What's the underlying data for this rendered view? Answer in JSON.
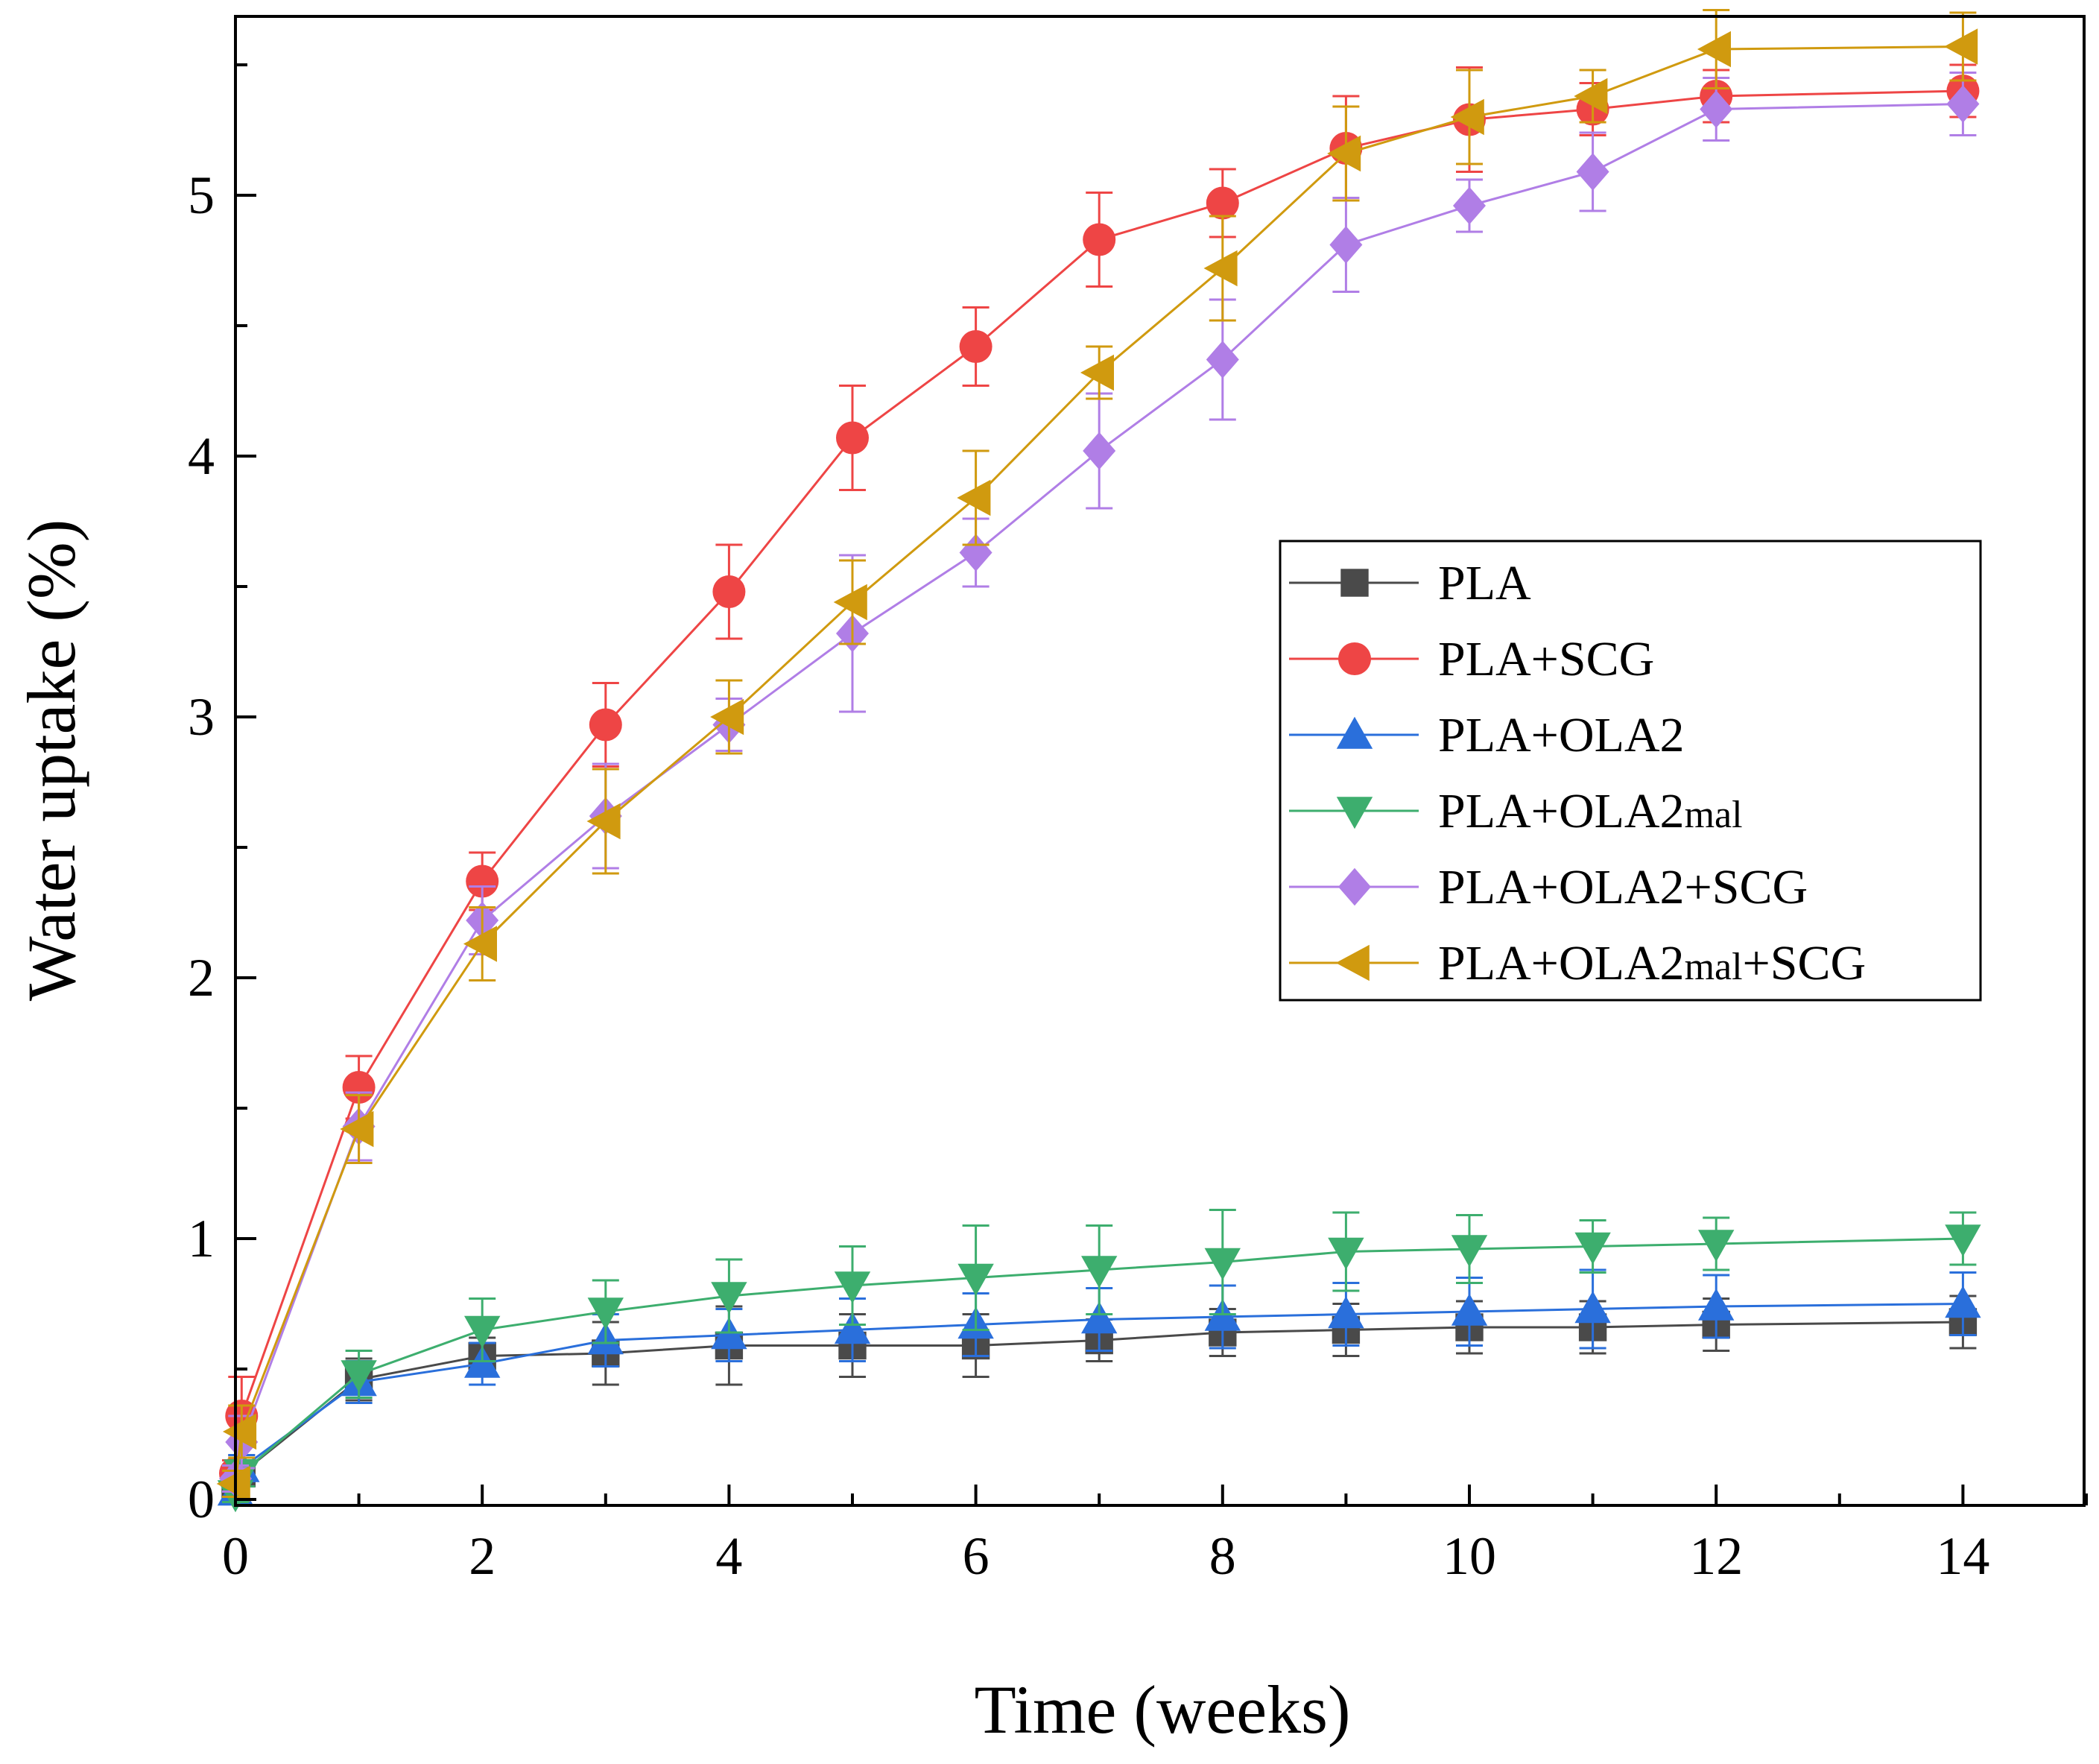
{
  "chart_data": {
    "type": "line",
    "title": "",
    "xlabel": "Time (weeks)",
    "ylabel": "Water uptake (%)",
    "xlim": [
      0,
      15
    ],
    "ylim": [
      0,
      5.7
    ],
    "x_ticks": [
      0,
      2,
      4,
      6,
      8,
      10,
      12,
      14
    ],
    "x_tick_labels": [
      "0",
      "2",
      "4",
      "6",
      "8",
      "10",
      "12",
      "14"
    ],
    "y_ticks": [
      0,
      1,
      2,
      3,
      4,
      5
    ],
    "y_tick_labels": [
      "0",
      "1",
      "2",
      "3",
      "4",
      "5"
    ],
    "grid": false,
    "legend_position": "center-right",
    "series": [
      {
        "name": "PLA",
        "color": "#4a4a4a",
        "marker": "square",
        "points": [
          {
            "x": 0,
            "y": 0.05,
            "err": 0.04
          },
          {
            "x": 0.05,
            "y": 0.1,
            "err": 0.05
          },
          {
            "x": 1,
            "y": 0.46,
            "err": 0.08
          },
          {
            "x": 2,
            "y": 0.55,
            "err": 0.07
          },
          {
            "x": 3,
            "y": 0.56,
            "err": 0.12
          },
          {
            "x": 4,
            "y": 0.59,
            "err": 0.15
          },
          {
            "x": 5,
            "y": 0.59,
            "err": 0.12
          },
          {
            "x": 6,
            "y": 0.59,
            "err": 0.12
          },
          {
            "x": 7,
            "y": 0.61,
            "err": 0.08
          },
          {
            "x": 8,
            "y": 0.64,
            "err": 0.09
          },
          {
            "x": 9,
            "y": 0.65,
            "err": 0.1
          },
          {
            "x": 10,
            "y": 0.66,
            "err": 0.1
          },
          {
            "x": 11,
            "y": 0.66,
            "err": 0.1
          },
          {
            "x": 12,
            "y": 0.67,
            "err": 0.1
          },
          {
            "x": 14,
            "y": 0.68,
            "err": 0.1
          }
        ]
      },
      {
        "name": "PLA+SCG",
        "color": "#ee4545",
        "marker": "circle",
        "points": [
          {
            "x": 0,
            "y": 0.1,
            "err": 0.05
          },
          {
            "x": 0.05,
            "y": 0.32,
            "err": 0.15
          },
          {
            "x": 1,
            "y": 1.58,
            "err": 0.12
          },
          {
            "x": 2,
            "y": 2.37,
            "err": 0.11
          },
          {
            "x": 3,
            "y": 2.97,
            "err": 0.16
          },
          {
            "x": 4,
            "y": 3.48,
            "err": 0.18
          },
          {
            "x": 5,
            "y": 4.07,
            "err": 0.2
          },
          {
            "x": 6,
            "y": 4.42,
            "err": 0.15
          },
          {
            "x": 7,
            "y": 4.83,
            "err": 0.18
          },
          {
            "x": 8,
            "y": 4.97,
            "err": 0.13
          },
          {
            "x": 9,
            "y": 5.18,
            "err": 0.2
          },
          {
            "x": 10,
            "y": 5.29,
            "err": 0.2
          },
          {
            "x": 11,
            "y": 5.33,
            "err": 0.1
          },
          {
            "x": 12,
            "y": 5.38,
            "err": 0.1
          },
          {
            "x": 14,
            "y": 5.4,
            "err": 0.1
          }
        ]
      },
      {
        "name": "PLA+OLA2",
        "color": "#2a6fdb",
        "marker": "triangle-up",
        "points": [
          {
            "x": 0,
            "y": 0.03,
            "err": 0.03
          },
          {
            "x": 0.05,
            "y": 0.12,
            "err": 0.05
          },
          {
            "x": 1,
            "y": 0.45,
            "err": 0.08
          },
          {
            "x": 2,
            "y": 0.52,
            "err": 0.08
          },
          {
            "x": 3,
            "y": 0.61,
            "err": 0.1
          },
          {
            "x": 4,
            "y": 0.63,
            "err": 0.1
          },
          {
            "x": 5,
            "y": 0.65,
            "err": 0.12
          },
          {
            "x": 6,
            "y": 0.67,
            "err": 0.12
          },
          {
            "x": 7,
            "y": 0.69,
            "err": 0.12
          },
          {
            "x": 8,
            "y": 0.7,
            "err": 0.12
          },
          {
            "x": 9,
            "y": 0.71,
            "err": 0.12
          },
          {
            "x": 10,
            "y": 0.72,
            "err": 0.13
          },
          {
            "x": 11,
            "y": 0.73,
            "err": 0.15
          },
          {
            "x": 12,
            "y": 0.74,
            "err": 0.12
          },
          {
            "x": 14,
            "y": 0.75,
            "err": 0.12
          }
        ]
      },
      {
        "name": "PLA+OLA2mal",
        "name_main": "PLA+OLA2",
        "name_sub": "mal",
        "color": "#3dae6e",
        "marker": "triangle-down",
        "points": [
          {
            "x": 0,
            "y": 0.02,
            "err": 0.03
          },
          {
            "x": 0.05,
            "y": 0.1,
            "err": 0.05
          },
          {
            "x": 1,
            "y": 0.48,
            "err": 0.09
          },
          {
            "x": 2,
            "y": 0.65,
            "err": 0.12
          },
          {
            "x": 3,
            "y": 0.72,
            "err": 0.12
          },
          {
            "x": 4,
            "y": 0.78,
            "err": 0.14
          },
          {
            "x": 5,
            "y": 0.82,
            "err": 0.15
          },
          {
            "x": 6,
            "y": 0.85,
            "err": 0.2
          },
          {
            "x": 7,
            "y": 0.88,
            "err": 0.17
          },
          {
            "x": 8,
            "y": 0.91,
            "err": 0.2
          },
          {
            "x": 9,
            "y": 0.95,
            "err": 0.15
          },
          {
            "x": 10,
            "y": 0.96,
            "err": 0.13
          },
          {
            "x": 11,
            "y": 0.97,
            "err": 0.1
          },
          {
            "x": 12,
            "y": 0.98,
            "err": 0.1
          },
          {
            "x": 14,
            "y": 1.0,
            "err": 0.1
          }
        ]
      },
      {
        "name": "PLA+OLA2+SCG",
        "color": "#b07ee6",
        "marker": "diamond",
        "points": [
          {
            "x": 0,
            "y": 0.08,
            "err": 0.05
          },
          {
            "x": 0.05,
            "y": 0.22,
            "err": 0.1
          },
          {
            "x": 1,
            "y": 1.43,
            "err": 0.13
          },
          {
            "x": 2,
            "y": 2.22,
            "err": 0.13
          },
          {
            "x": 3,
            "y": 2.62,
            "err": 0.2
          },
          {
            "x": 4,
            "y": 2.97,
            "err": 0.1
          },
          {
            "x": 5,
            "y": 3.32,
            "err": 0.3
          },
          {
            "x": 6,
            "y": 3.63,
            "err": 0.13
          },
          {
            "x": 7,
            "y": 4.02,
            "err": 0.22
          },
          {
            "x": 8,
            "y": 4.37,
            "err": 0.23
          },
          {
            "x": 9,
            "y": 4.81,
            "err": 0.18
          },
          {
            "x": 10,
            "y": 4.96,
            "err": 0.1
          },
          {
            "x": 11,
            "y": 5.09,
            "err": 0.15
          },
          {
            "x": 12,
            "y": 5.33,
            "err": 0.12
          },
          {
            "x": 14,
            "y": 5.35,
            "err": 0.12
          }
        ]
      },
      {
        "name": "PLA+OLA2mal+SCG",
        "name_main": "PLA+OLA2",
        "name_sub": "mal",
        "name_tail": "+SCG",
        "color": "#d09a0f",
        "marker": "triangle-left",
        "points": [
          {
            "x": 0,
            "y": 0.06,
            "err": 0.05
          },
          {
            "x": 0.05,
            "y": 0.26,
            "err": 0.1
          },
          {
            "x": 1,
            "y": 1.42,
            "err": 0.13
          },
          {
            "x": 2,
            "y": 2.13,
            "err": 0.14
          },
          {
            "x": 3,
            "y": 2.6,
            "err": 0.2
          },
          {
            "x": 4,
            "y": 3.0,
            "err": 0.14
          },
          {
            "x": 5,
            "y": 3.44,
            "err": 0.16
          },
          {
            "x": 6,
            "y": 3.84,
            "err": 0.18
          },
          {
            "x": 7,
            "y": 4.32,
            "err": 0.1
          },
          {
            "x": 8,
            "y": 4.72,
            "err": 0.2
          },
          {
            "x": 9,
            "y": 5.16,
            "err": 0.18
          },
          {
            "x": 10,
            "y": 5.3,
            "err": 0.18
          },
          {
            "x": 11,
            "y": 5.38,
            "err": 0.1
          },
          {
            "x": 12,
            "y": 5.56,
            "err": 0.15
          },
          {
            "x": 14,
            "y": 5.57,
            "err": 0.13
          }
        ]
      }
    ]
  }
}
